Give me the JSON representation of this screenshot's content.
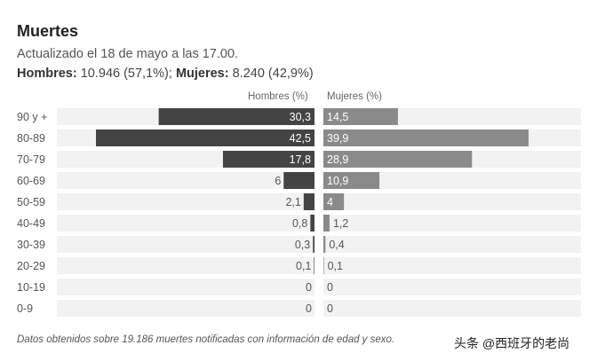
{
  "header": {
    "title": "Muertes",
    "subtitle": "Actualizado el 18 de mayo a las 17.00.",
    "men_label": "Hombres:",
    "men_value": "10.946 (57,1%);",
    "women_label": "Mujeres:",
    "women_value": "8.240 (42,9%)"
  },
  "footer": {
    "note": "Datos obtenidos sobre 19.186 muertes notificadas con información de edad y sexo.",
    "watermark": "头条 @西班牙的老尚"
  },
  "colors": {
    "men": "#444444",
    "women": "#8a8a8a",
    "row_bg": "#f2f2f2",
    "text": "#555555"
  },
  "chart_data": {
    "type": "bar",
    "orientation": "horizontal-butterfly",
    "left_header": "Hombres (%)",
    "right_header": "Mujeres (%)",
    "categories": [
      "90 y +",
      "80-89",
      "70-79",
      "60-69",
      "50-59",
      "40-49",
      "30-39",
      "20-29",
      "10-19",
      "0-9"
    ],
    "series": [
      {
        "name": "Hombres (%)",
        "values": [
          30.3,
          42.5,
          17.8,
          6,
          2.1,
          0.8,
          0.3,
          0.1,
          0,
          0
        ],
        "labels": [
          "30,3",
          "42,5",
          "17,8",
          "6",
          "2,1",
          "0,8",
          "0,3",
          "0,1",
          "0",
          "0"
        ]
      },
      {
        "name": "Mujeres (%)",
        "values": [
          14.5,
          39.9,
          28.9,
          10.9,
          4,
          1.2,
          0.4,
          0.1,
          0,
          0
        ],
        "labels": [
          "14,5",
          "39,9",
          "28,9",
          "10,9",
          "4",
          "1,2",
          "0,4",
          "0,1",
          "0",
          "0"
        ]
      }
    ],
    "xlim": [
      0,
      45
    ]
  }
}
